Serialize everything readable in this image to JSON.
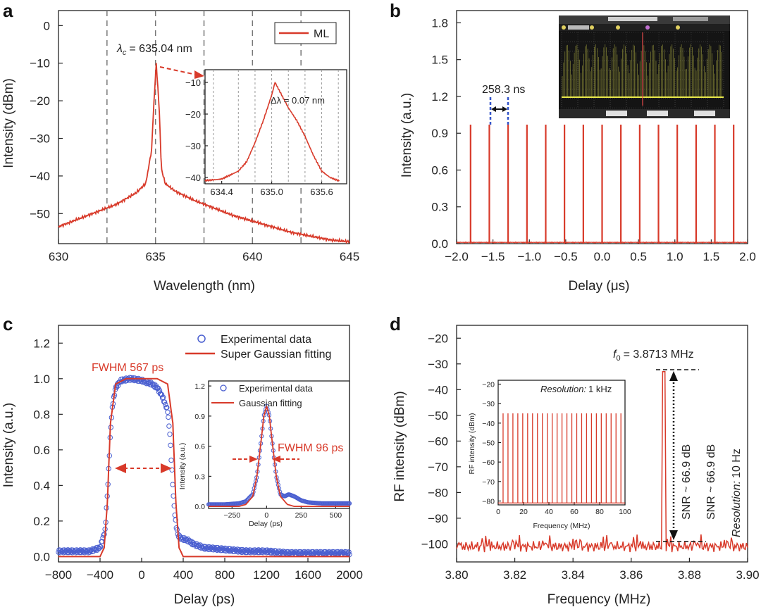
{
  "colors": {
    "series": "#d83a2a",
    "points": "#4a5fd0",
    "grid": "#777777",
    "axis": "#222222"
  },
  "panels": {
    "a": {
      "label": "a",
      "legend": "ML",
      "xlabel": "Wavelength (nm)",
      "ylabel": "Intensity (dBm)",
      "center": "= 635.04 nm",
      "center_sym": "λ",
      "center_sub": "c",
      "inset_note": "Δλ = 0.07 nm"
    },
    "b": {
      "label": "b",
      "xlabel": "Delay (μs)",
      "ylabel": "Intensity (a.u.)",
      "period": "258.3 ns"
    },
    "c": {
      "label": "c",
      "xlabel": "Delay (ps)",
      "ylabel": "Intensity (a.u.)",
      "fwhm_main": "FWHM 567 ps",
      "fwhm_inset": "FWHM 96 ps",
      "legend_exp": "Experimental data",
      "legend_fit": "Super Gaussian fitting",
      "inset_legend_exp": "Experimental data",
      "inset_legend_fit": "Gaussian fitting",
      "inset_xlabel": "Delay (ps)",
      "inset_ylabel": "Intensity (a.u.)"
    },
    "d": {
      "label": "d",
      "xlabel": "Frequency (MHz)",
      "ylabel": "RF intensity (dBm)",
      "f0_sym": "f",
      "f0_sub": "0",
      "f0_text": "= 3.8713 MHz",
      "snr": "SNR ~ 66.9 dB",
      "res_word": "Resolution:",
      "res_val": "10 Hz",
      "inset_res_word": "Resolution:",
      "inset_res_val": "1 kHz",
      "inset_xlabel": "Frequency (MHz)",
      "inset_ylabel": "RF intensity (dBm)"
    }
  },
  "chart_data": [
    {
      "panel": "a",
      "type": "line",
      "xlim": [
        630,
        645
      ],
      "ylim": [
        -58,
        4
      ],
      "xticks": [
        "630",
        "635",
        "640",
        "645"
      ],
      "yticks": [
        "0",
        "−10",
        "−20",
        "−30",
        "−40",
        "−50"
      ],
      "grid_dashed_x": [
        632.5,
        635,
        637.5,
        640,
        642.5
      ],
      "series": [
        {
          "name": "ML",
          "x": [
            630,
            631,
            632,
            633,
            634,
            634.5,
            634.8,
            634.9,
            635.04,
            635.2,
            635.3,
            635.5,
            636,
            637,
            638,
            639,
            640,
            641,
            642,
            643,
            644,
            645
          ],
          "y": [
            -53.5,
            -51.5,
            -49.5,
            -47.5,
            -44.5,
            -42,
            -33,
            -22,
            -10,
            -23,
            -38,
            -42,
            -44,
            -46.5,
            -48.5,
            -50.5,
            -52,
            -53.5,
            -55,
            -56,
            -57,
            -57.5
          ]
        }
      ],
      "inset": {
        "xlim": [
          634.2,
          635.9
        ],
        "ylim": [
          -42,
          -6
        ],
        "xticks": [
          "634.4",
          "635.0",
          "635.6"
        ],
        "yticks": [
          "−10",
          "−20",
          "−30",
          "−40"
        ],
        "grid_dashed_x": [
          634.3,
          634.6,
          634.8,
          635.0,
          635.2,
          635.4,
          635.6,
          635.8
        ],
        "x": [
          634.2,
          634.4,
          634.6,
          634.7,
          634.8,
          634.9,
          635.0,
          635.04,
          635.1,
          635.2,
          635.3,
          635.4,
          635.5,
          635.6,
          635.7,
          635.8
        ],
        "y": [
          -41,
          -40.5,
          -38,
          -35,
          -29,
          -22,
          -14,
          -10,
          -13,
          -18,
          -22,
          -27,
          -33,
          -38,
          -40,
          -41
        ]
      }
    },
    {
      "panel": "b",
      "type": "line",
      "xlim": [
        -2.0,
        2.0
      ],
      "ylim": [
        0,
        1.9
      ],
      "xticks": [
        "−2.0",
        "−1.5",
        "−1.0",
        "−0.5",
        "0.0",
        "0.5",
        "1.0",
        "1.5",
        "2.0"
      ],
      "yticks": [
        "0.0",
        "0.3",
        "0.6",
        "0.9",
        "1.2",
        "1.5",
        "1.8"
      ],
      "pulse_positions": [
        -1.808,
        -1.55,
        -1.292,
        -1.033,
        -0.775,
        -0.517,
        -0.258,
        0.0,
        0.258,
        0.517,
        0.775,
        1.033,
        1.292,
        1.55,
        1.808
      ],
      "pulse_height": 0.97
    },
    {
      "panel": "c",
      "type": "line",
      "xlim": [
        -800,
        2000
      ],
      "ylim": [
        -0.03,
        1.3
      ],
      "xticks": [
        "−800",
        "−400",
        "0",
        "400",
        "800",
        "1200",
        "1600",
        "2000"
      ],
      "yticks": [
        "0.0",
        "0.2",
        "0.4",
        "0.6",
        "0.8",
        "1.0",
        "1.2"
      ],
      "series": [
        {
          "name": "Super Gaussian fitting",
          "x": [
            -800,
            -400,
            -360,
            -330,
            -300,
            -250,
            -150,
            0,
            150,
            250,
            300,
            330,
            360,
            400,
            2000
          ],
          "y": [
            0,
            0,
            0.05,
            0.3,
            0.75,
            0.97,
            1.0,
            1.0,
            1.0,
            0.97,
            0.75,
            0.3,
            0.05,
            0,
            0
          ]
        },
        {
          "name": "Experimental data",
          "x": [
            -800,
            -500,
            -400,
            -350,
            -320,
            -300,
            -280,
            -250,
            -200,
            -100,
            0,
            100,
            150,
            200,
            250,
            270,
            290,
            310,
            330,
            350,
            380,
            400,
            450,
            500,
            600,
            800,
            1000,
            1200,
            1400,
            1600,
            1800,
            2000
          ],
          "y": [
            0.03,
            0.03,
            0.05,
            0.15,
            0.45,
            0.7,
            0.85,
            0.95,
            0.99,
            1.0,
            0.99,
            0.97,
            0.95,
            0.9,
            0.82,
            0.7,
            0.5,
            0.3,
            0.18,
            0.12,
            0.1,
            0.1,
            0.09,
            0.07,
            0.05,
            0.04,
            0.03,
            0.03,
            0.02,
            0.02,
            0.02,
            0.02
          ]
        }
      ],
      "inset": {
        "xlim": [
          -420,
          600
        ],
        "ylim": [
          -0.02,
          1.25
        ],
        "xticks": [
          "−250",
          "0",
          "250",
          "500"
        ],
        "yticks": [
          "0.0",
          "0.3",
          "0.6",
          "0.9",
          "1.2"
        ],
        "fit": {
          "x": [
            -420,
            -200,
            -150,
            -100,
            -70,
            -40,
            -20,
            0,
            20,
            40,
            70,
            100,
            150,
            200,
            600
          ],
          "y": [
            0,
            0,
            0.02,
            0.1,
            0.3,
            0.65,
            0.9,
            1.0,
            0.9,
            0.65,
            0.3,
            0.1,
            0.02,
            0,
            0
          ]
        },
        "exp": {
          "x": [
            -420,
            -300,
            -200,
            -150,
            -100,
            -70,
            -40,
            -20,
            0,
            20,
            40,
            70,
            100,
            130,
            160,
            200,
            250,
            300,
            400,
            500,
            600
          ],
          "y": [
            0.02,
            0.02,
            0.03,
            0.05,
            0.12,
            0.3,
            0.65,
            0.9,
            1.0,
            0.9,
            0.65,
            0.3,
            0.12,
            0.1,
            0.12,
            0.1,
            0.06,
            0.04,
            0.03,
            0.03,
            0.03
          ]
        }
      }
    },
    {
      "panel": "d",
      "type": "line",
      "xlim": [
        3.8,
        3.9
      ],
      "ylim": [
        -107,
        -15
      ],
      "xticks": [
        "3.80",
        "3.82",
        "3.84",
        "3.86",
        "3.88",
        "3.90"
      ],
      "yticks": [
        "−20",
        "−30",
        "−40",
        "−50",
        "−60",
        "−70",
        "−80",
        "−90",
        "−100"
      ],
      "peak": {
        "x": 3.8713,
        "y": -33
      },
      "noise_floor": -101,
      "inset": {
        "xlim": [
          0,
          100
        ],
        "ylim": [
          -82,
          -18
        ],
        "xticks": [
          "0",
          "20",
          "40",
          "60",
          "80",
          "100"
        ],
        "yticks": [
          "−20",
          "−30",
          "−40",
          "−50",
          "−60",
          "−70",
          "−80"
        ],
        "harmonic_spacing": 3.8713,
        "harmonic_top": -35,
        "floor": -81
      }
    }
  ]
}
